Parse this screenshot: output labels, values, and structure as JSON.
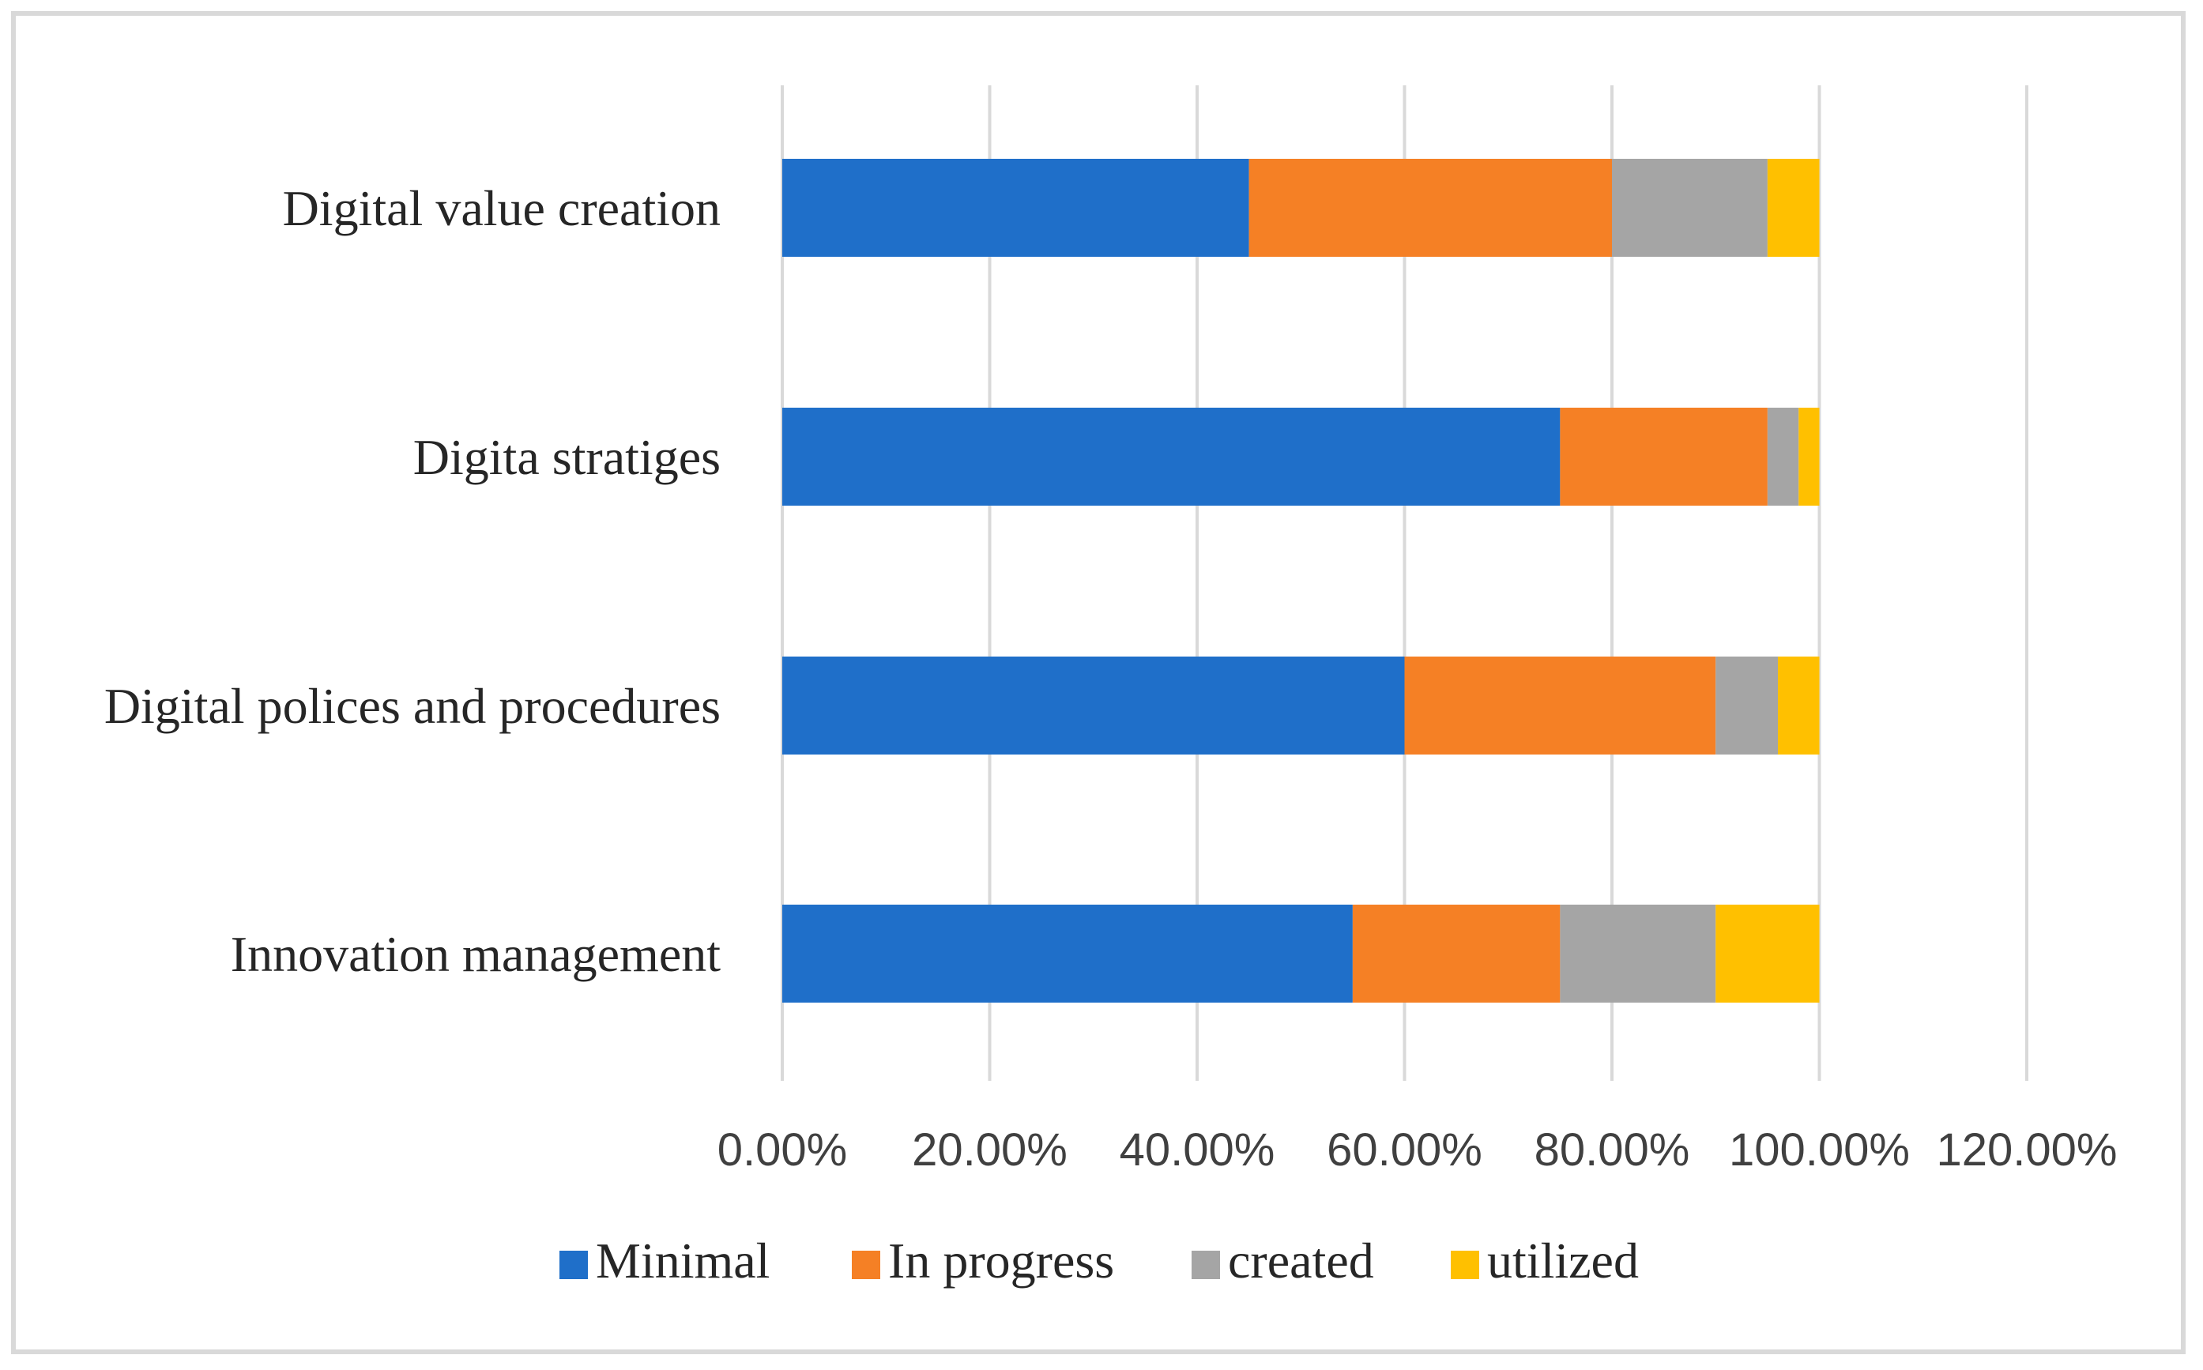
{
  "chart_data": {
    "type": "bar",
    "orientation": "horizontal",
    "stacked": true,
    "title": "",
    "xlabel": "",
    "ylabel": "",
    "xlim": [
      0,
      120
    ],
    "x_ticks": [
      "0.00%",
      "20.00%",
      "40.00%",
      "60.00%",
      "80.00%",
      "100.00%",
      "120.00%"
    ],
    "categories": [
      "Digital value creation",
      "Digita stratiges",
      "Digital polices and procedures",
      "Innovation management"
    ],
    "series": [
      {
        "name": "Minimal",
        "color": "#1f6fc9",
        "values": [
          45,
          75,
          60,
          55
        ]
      },
      {
        "name": "In progress",
        "color": "#f58025",
        "values": [
          35,
          20,
          30,
          20
        ]
      },
      {
        "name": "created",
        "color": "#a5a5a5",
        "values": [
          15,
          3,
          6,
          15
        ]
      },
      {
        "name": "utilized",
        "color": "#ffc000",
        "values": [
          5,
          2,
          4,
          10
        ]
      }
    ],
    "grid": true,
    "legend_position": "bottom"
  }
}
